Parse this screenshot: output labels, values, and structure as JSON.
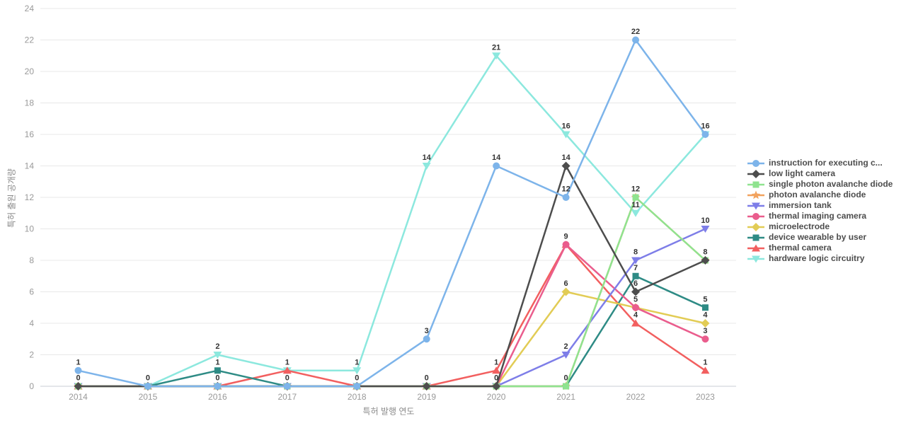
{
  "chart_data": {
    "type": "line",
    "title": "",
    "xlabel": "특허 발행 연도",
    "ylabel": "특허 출원 공개량",
    "categories": [
      "2014",
      "2015",
      "2016",
      "2017",
      "2018",
      "2019",
      "2020",
      "2021",
      "2022",
      "2023"
    ],
    "ylim": [
      0,
      24
    ],
    "ytick_step": 2,
    "grid": true,
    "legend_position": "right",
    "colors": {
      "grid_line": "#e8e8e8",
      "axis_line": "#c9cdd4",
      "tick_text": "#999999",
      "data_label": "#333333",
      "legend_text": "#4d4d4d"
    },
    "series": [
      {
        "name": "instruction for executing c...",
        "color": "#7db4ea",
        "marker": "circle",
        "values": [
          1,
          0,
          0,
          0,
          0,
          3,
          14,
          12,
          22,
          16
        ]
      },
      {
        "name": "low light camera",
        "color": "#4d4d4d",
        "marker": "diamond",
        "values": [
          0,
          0,
          0,
          0,
          0,
          0,
          0,
          14,
          6,
          8
        ]
      },
      {
        "name": "single photon avalanche diode",
        "color": "#8fe38f",
        "marker": "square",
        "values": [
          0,
          0,
          0,
          0,
          0,
          0,
          0,
          0,
          12,
          8
        ]
      },
      {
        "name": "photon avalanche diode",
        "color": "#f2a35f",
        "marker": "star",
        "values": [
          0,
          0,
          0,
          0,
          0,
          0,
          0,
          0,
          12,
          8
        ]
      },
      {
        "name": "immersion tank",
        "color": "#7e7ee8",
        "marker": "triangle-down",
        "values": [
          0,
          0,
          0,
          0,
          0,
          0,
          0,
          2,
          8,
          10
        ]
      },
      {
        "name": "thermal imaging camera",
        "color": "#ea5d8d",
        "marker": "circle",
        "values": [
          0,
          0,
          0,
          0,
          0,
          0,
          0,
          9,
          5,
          3
        ]
      },
      {
        "name": "microelectrode",
        "color": "#e2cc55",
        "marker": "diamond",
        "values": [
          0,
          0,
          0,
          0,
          0,
          0,
          0,
          6,
          5,
          4
        ]
      },
      {
        "name": "device wearable by user",
        "color": "#2e8b85",
        "marker": "square",
        "values": [
          0,
          0,
          1,
          0,
          0,
          0,
          0,
          0,
          7,
          5
        ]
      },
      {
        "name": "thermal camera",
        "color": "#f25f5f",
        "marker": "triangle-up",
        "values": [
          0,
          0,
          0,
          1,
          0,
          0,
          1,
          9,
          4,
          1
        ]
      },
      {
        "name": "hardware logic circuitry",
        "color": "#8ce8de",
        "marker": "triangle-down",
        "values": [
          0,
          0,
          2,
          1,
          1,
          14,
          21,
          16,
          11,
          16
        ]
      }
    ]
  }
}
